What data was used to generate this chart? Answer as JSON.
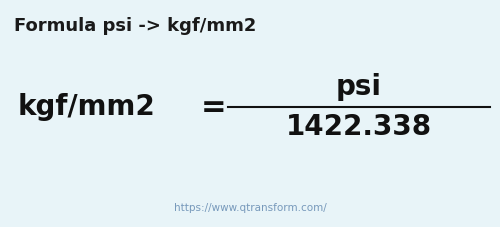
{
  "background_color": "#e8f4f8",
  "title_text": "Formula psi -> kgf/mm2",
  "title_fontsize": 13,
  "title_color": "#1a1a1a",
  "label_left": "kgf/mm2",
  "label_right_top": "psi",
  "label_right_bottom": "1422.338",
  "equals_sign": "=",
  "url_text": "https://www.qtransform.com/",
  "url_fontsize": 7.5,
  "url_color": "#7799bb",
  "main_fontsize": 20,
  "number_fontsize": 20,
  "line_color": "#111111",
  "text_color": "#111111",
  "title_weight": "bold"
}
